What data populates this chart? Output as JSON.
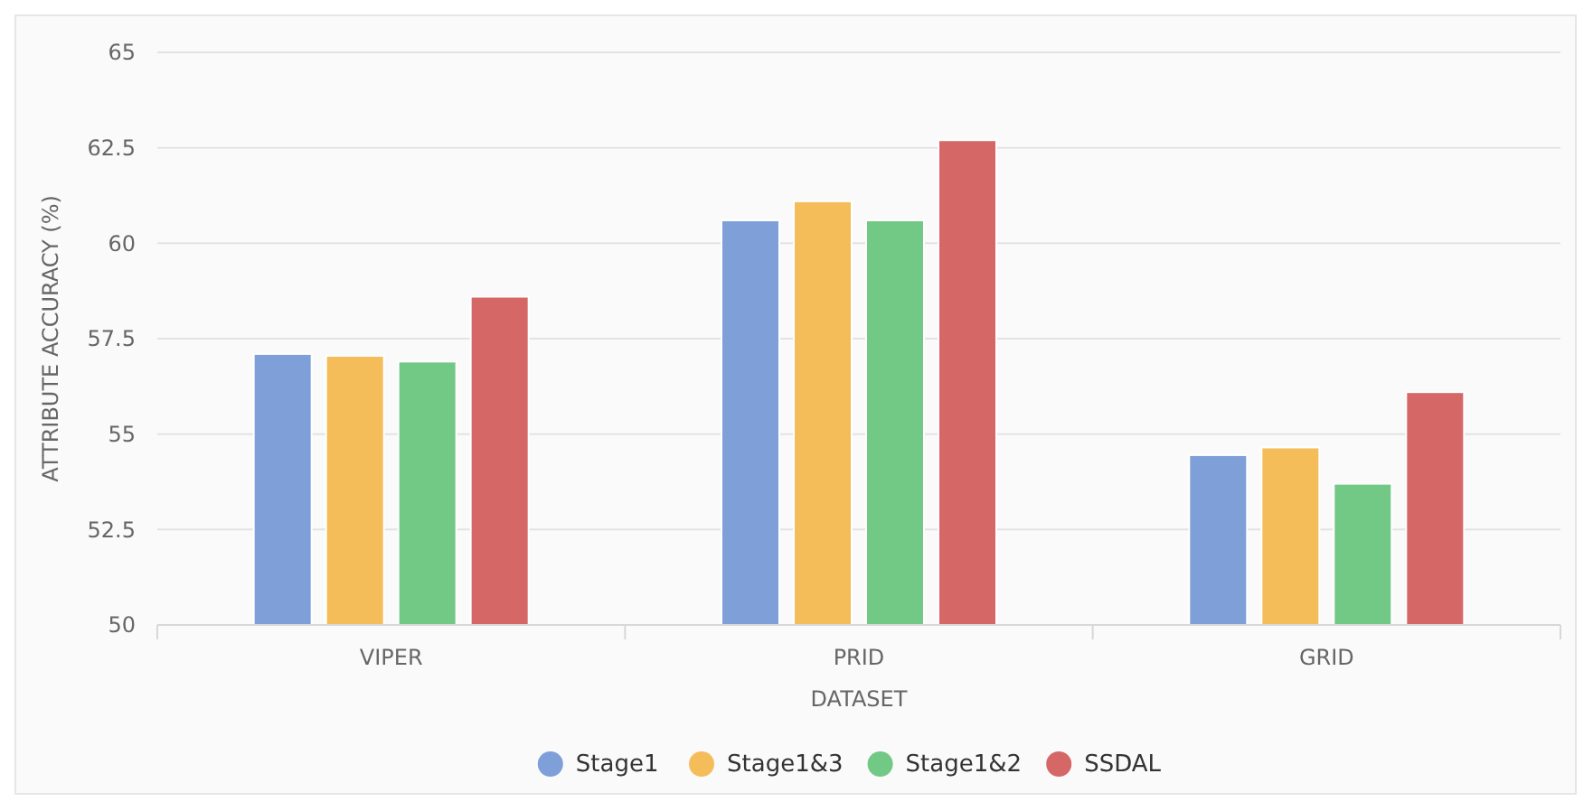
{
  "chart_data": {
    "type": "bar",
    "xlabel": "DATASET",
    "ylabel": "ATTRIBUTE ACCURACY (%)",
    "categories": [
      "VIPER",
      "PRID",
      "GRID"
    ],
    "series": [
      {
        "name": "Stage1",
        "color": "#7f9fd9",
        "values": [
          57.1,
          60.6,
          54.45
        ]
      },
      {
        "name": "Stage1&3",
        "color": "#f5bd59",
        "values": [
          57.05,
          61.1,
          54.65
        ]
      },
      {
        "name": "Stage1&2",
        "color": "#72c885",
        "values": [
          56.9,
          60.6,
          53.7
        ]
      },
      {
        "name": "SSDAL",
        "color": "#d56867",
        "values": [
          58.6,
          62.7,
          56.1
        ]
      }
    ],
    "ylim": [
      50,
      65
    ],
    "yticks": [
      50,
      52.5,
      55,
      57.5,
      60,
      62.5,
      65
    ],
    "grid": "y",
    "legend": "bottom"
  }
}
